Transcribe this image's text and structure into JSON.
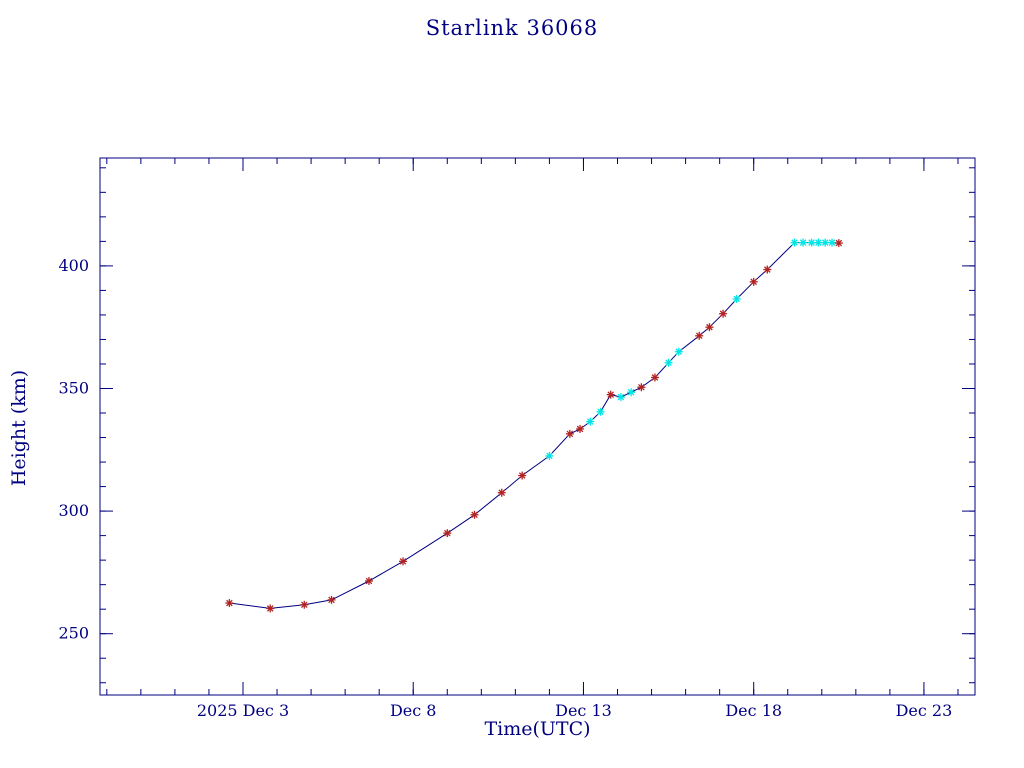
{
  "chart_data": {
    "type": "line",
    "title": "Starlink 36068",
    "xlabel": "Time(UTC)",
    "ylabel": "Height (km)",
    "x_unit": "day of December 2025",
    "xlim": [
      -1.2,
      24.5
    ],
    "ylim": [
      225,
      444
    ],
    "grid": false,
    "legend": "none",
    "minor_x_step": 1,
    "minor_y_step": 10,
    "xticks": [
      {
        "pos": 3,
        "label": "2025 Dec 3"
      },
      {
        "pos": 8,
        "label": "Dec 8"
      },
      {
        "pos": 13,
        "label": "Dec 13"
      },
      {
        "pos": 18,
        "label": "Dec 18"
      },
      {
        "pos": 23,
        "label": "Dec 23"
      }
    ],
    "yticks": [
      {
        "pos": 250,
        "label": "250"
      },
      {
        "pos": 300,
        "label": "300"
      },
      {
        "pos": 350,
        "label": "350"
      },
      {
        "pos": 400,
        "label": "400"
      }
    ],
    "colors": {
      "axis": "#000080",
      "line": "#000080",
      "red_marker": "#b22222",
      "cyan_marker": "#00e5e5",
      "background": "#ffffff"
    },
    "points": [
      {
        "day": 2.6,
        "height": 262.5,
        "marker": "red"
      },
      {
        "day": 3.8,
        "height": 260.3,
        "marker": "red"
      },
      {
        "day": 4.8,
        "height": 261.8,
        "marker": "red"
      },
      {
        "day": 5.6,
        "height": 263.8,
        "marker": "red"
      },
      {
        "day": 6.7,
        "height": 271.5,
        "marker": "red"
      },
      {
        "day": 7.7,
        "height": 279.5,
        "marker": "red"
      },
      {
        "day": 9.0,
        "height": 291.0,
        "marker": "red"
      },
      {
        "day": 9.8,
        "height": 298.5,
        "marker": "red"
      },
      {
        "day": 10.6,
        "height": 307.5,
        "marker": "red"
      },
      {
        "day": 11.2,
        "height": 314.5,
        "marker": "red"
      },
      {
        "day": 12.0,
        "height": 322.5,
        "marker": "cyan"
      },
      {
        "day": 12.6,
        "height": 331.5,
        "marker": "red"
      },
      {
        "day": 12.9,
        "height": 333.5,
        "marker": "red"
      },
      {
        "day": 13.2,
        "height": 336.5,
        "marker": "cyan"
      },
      {
        "day": 13.5,
        "height": 340.5,
        "marker": "cyan"
      },
      {
        "day": 13.8,
        "height": 347.5,
        "marker": "red"
      },
      {
        "day": 14.1,
        "height": 346.5,
        "marker": "cyan"
      },
      {
        "day": 14.4,
        "height": 348.5,
        "marker": "cyan"
      },
      {
        "day": 14.7,
        "height": 350.5,
        "marker": "red"
      },
      {
        "day": 15.1,
        "height": 354.5,
        "marker": "red"
      },
      {
        "day": 15.5,
        "height": 360.5,
        "marker": "cyan"
      },
      {
        "day": 15.8,
        "height": 365.0,
        "marker": "cyan"
      },
      {
        "day": 16.4,
        "height": 371.5,
        "marker": "red"
      },
      {
        "day": 16.7,
        "height": 375.0,
        "marker": "red"
      },
      {
        "day": 17.1,
        "height": 380.5,
        "marker": "red"
      },
      {
        "day": 17.5,
        "height": 386.5,
        "marker": "cyan"
      },
      {
        "day": 18.0,
        "height": 393.5,
        "marker": "red"
      },
      {
        "day": 18.4,
        "height": 398.5,
        "marker": "red"
      },
      {
        "day": 19.2,
        "height": 409.5,
        "marker": "cyan"
      },
      {
        "day": 19.45,
        "height": 409.5,
        "marker": "cyan"
      },
      {
        "day": 19.7,
        "height": 409.5,
        "marker": "cyan"
      },
      {
        "day": 19.9,
        "height": 409.5,
        "marker": "cyan"
      },
      {
        "day": 20.1,
        "height": 409.5,
        "marker": "cyan"
      },
      {
        "day": 20.3,
        "height": 409.5,
        "marker": "cyan"
      },
      {
        "day": 20.5,
        "height": 409.3,
        "marker": "red"
      }
    ]
  }
}
